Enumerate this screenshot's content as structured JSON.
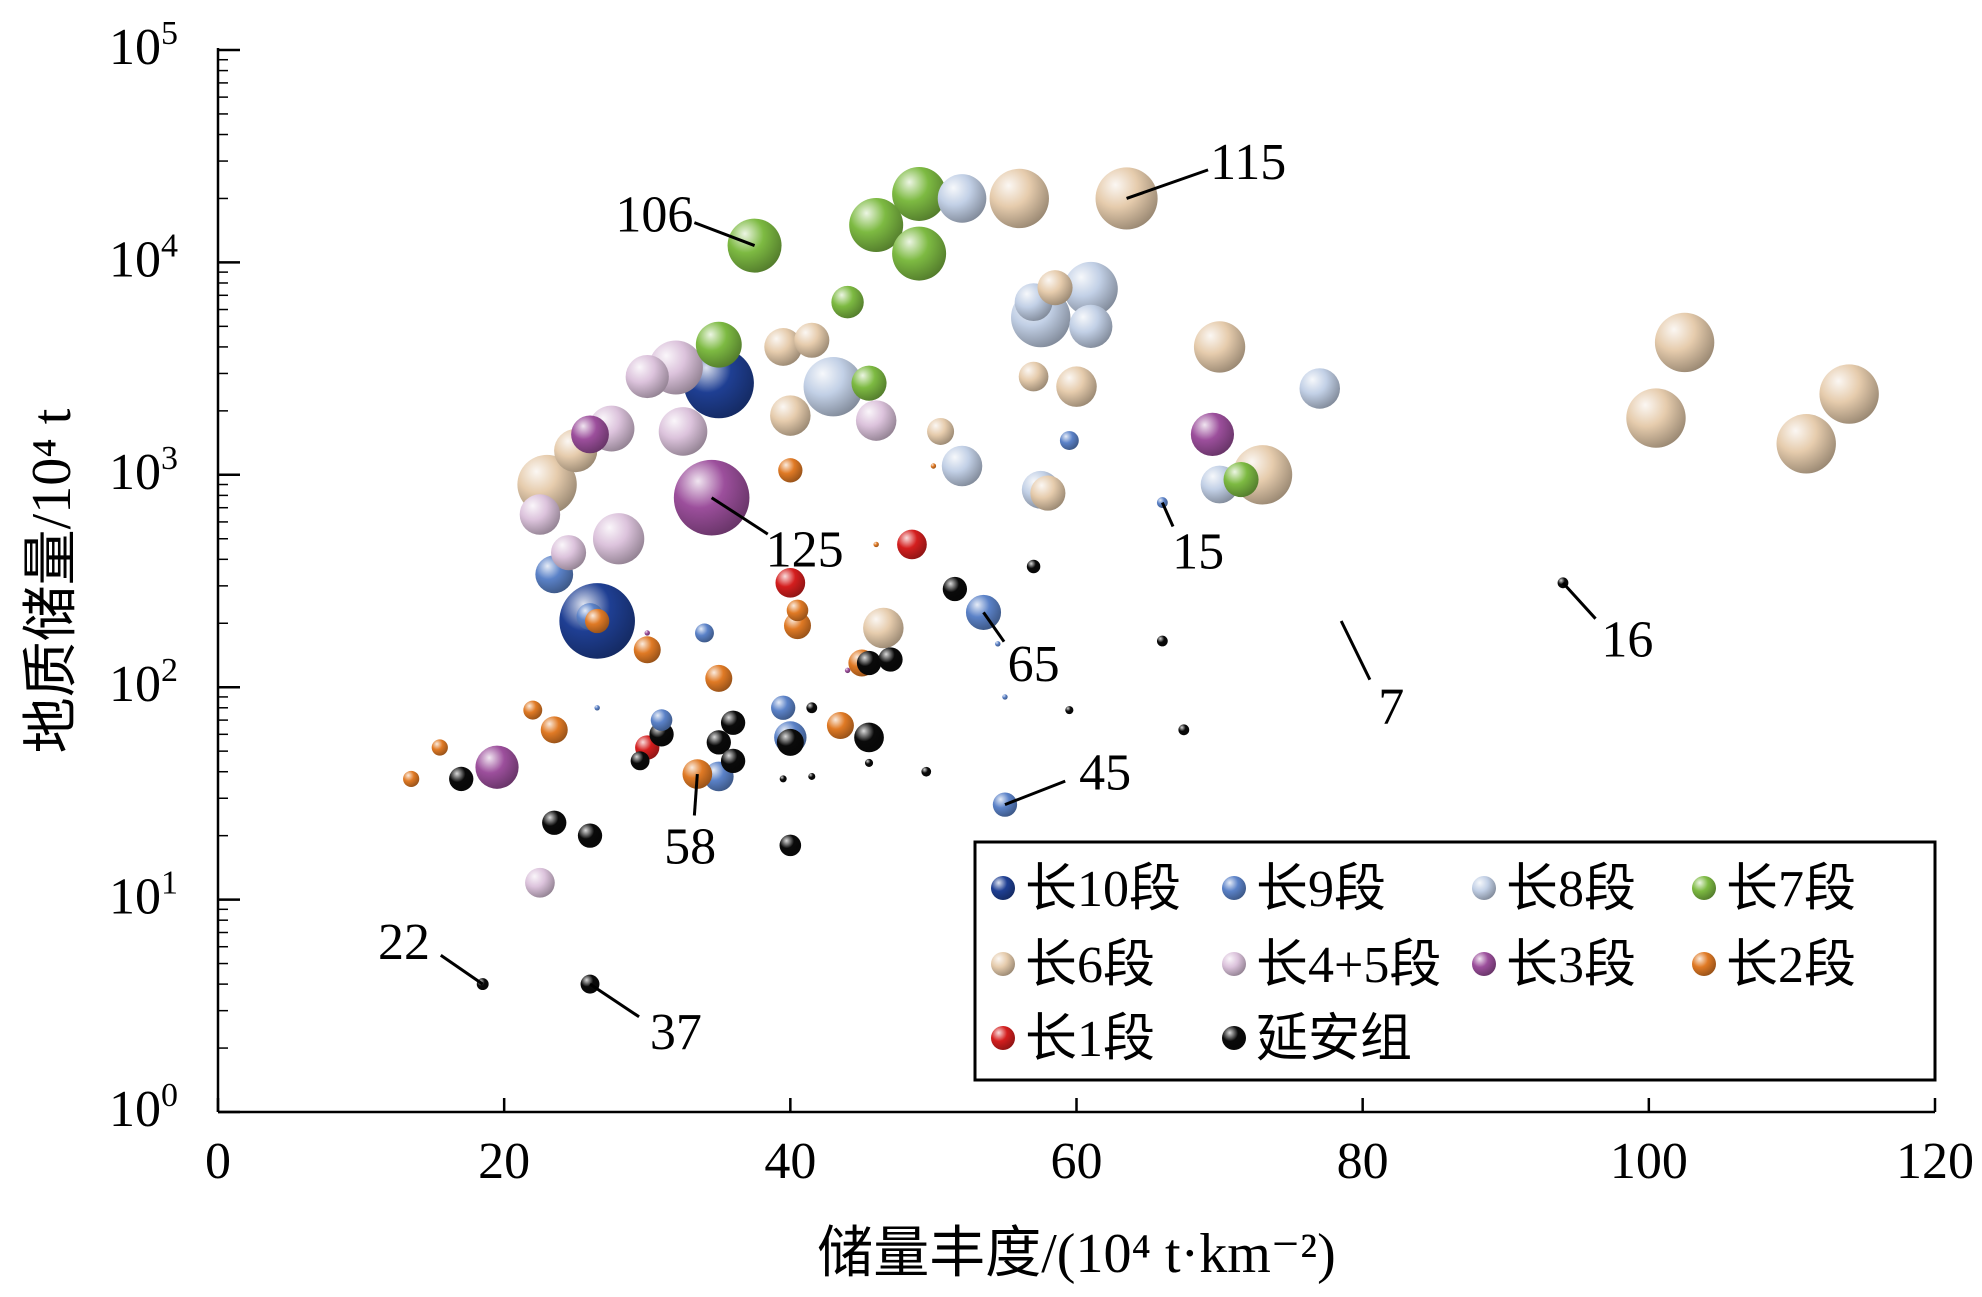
{
  "chart_data": {
    "type": "scatter",
    "title": "",
    "xlabel": "储量丰度/(10⁴ t·km⁻²)",
    "ylabel": "地质储量/10⁴ t",
    "xlim": [
      0,
      120
    ],
    "ylim": [
      1,
      100000
    ],
    "y_scale": "log",
    "grid": false,
    "legend_position": "bottom-right",
    "x_ticks": [
      0,
      20,
      40,
      60,
      80,
      100,
      120
    ],
    "x_tick_labels": [
      "0",
      "20",
      "40",
      "60",
      "80",
      "100",
      "120"
    ],
    "y_ticks": [
      {
        "value": 1,
        "exp": "0"
      },
      {
        "value": 10,
        "exp": "1"
      },
      {
        "value": 100,
        "exp": "2"
      },
      {
        "value": 1000,
        "exp": "3"
      },
      {
        "value": 10000,
        "exp": "4"
      },
      {
        "value": 100000,
        "exp": "5"
      }
    ],
    "y_tick_base": "10",
    "series": [
      {
        "name": "长10段",
        "color": "#1f3f93",
        "points": [
          [
            35,
            2700,
            1.3
          ],
          [
            26.5,
            205,
            1.4
          ]
        ]
      },
      {
        "name": "长9段",
        "color": "#5b82c8",
        "points": [
          [
            23.5,
            340,
            0.7
          ],
          [
            26,
            215,
            0.5
          ],
          [
            34,
            180,
            0.35
          ],
          [
            31,
            70,
            0.4
          ],
          [
            39.5,
            80,
            0.45
          ],
          [
            35,
            38,
            0.55
          ],
          [
            40,
            58,
            0.6
          ],
          [
            53.5,
            225,
            0.65
          ],
          [
            55,
            28,
            0.45
          ],
          [
            59.5,
            1450,
            0.35
          ],
          [
            54.5,
            160,
            0.1
          ],
          [
            55,
            90,
            0.1
          ],
          [
            66,
            740,
            0.2
          ],
          [
            26.5,
            80,
            0.1
          ]
        ]
      },
      {
        "name": "长8段",
        "color": "#c2d0e6",
        "points": [
          [
            52,
            20000,
            0.9
          ],
          [
            57,
            6500,
            0.7
          ],
          [
            57.5,
            5500,
            1.1
          ],
          [
            61,
            7500,
            1.0
          ],
          [
            61,
            5000,
            0.8
          ],
          [
            43,
            2600,
            1.1
          ],
          [
            52,
            1100,
            0.75
          ],
          [
            57.5,
            850,
            0.7
          ],
          [
            70,
            900,
            0.7
          ],
          [
            77,
            2550,
            0.75
          ]
        ]
      },
      {
        "name": "长7段",
        "color": "#7dba42",
        "points": [
          [
            49,
            21000,
            1.0
          ],
          [
            46,
            15000,
            1.0
          ],
          [
            49,
            11000,
            1.0
          ],
          [
            37.5,
            12000,
            1.0
          ],
          [
            44,
            6500,
            0.6
          ],
          [
            35,
            4100,
            0.85
          ],
          [
            45.5,
            2700,
            0.65
          ],
          [
            71.5,
            950,
            0.65
          ]
        ]
      },
      {
        "name": "长6段",
        "color": "#e6ccad",
        "points": [
          [
            56,
            20000,
            1.1
          ],
          [
            63.5,
            20000,
            1.15
          ],
          [
            58.5,
            7600,
            0.65
          ],
          [
            39.5,
            4000,
            0.7
          ],
          [
            41.5,
            4300,
            0.65
          ],
          [
            70,
            4000,
            0.95
          ],
          [
            57,
            2900,
            0.55
          ],
          [
            60,
            2600,
            0.75
          ],
          [
            40,
            1900,
            0.75
          ],
          [
            50.5,
            1600,
            0.5
          ],
          [
            73,
            1000,
            1.1
          ],
          [
            23,
            900,
            1.1
          ],
          [
            25,
            1300,
            0.8
          ],
          [
            58,
            820,
            0.65
          ],
          [
            46.5,
            190,
            0.75
          ],
          [
            102.5,
            4200,
            1.1
          ],
          [
            100.5,
            1850,
            1.1
          ],
          [
            111,
            1400,
            1.1
          ],
          [
            114,
            2400,
            1.1
          ]
        ]
      },
      {
        "name": "长4+5段",
        "color": "#dcc3dc",
        "points": [
          [
            30,
            2900,
            0.8
          ],
          [
            32,
            3200,
            1.0
          ],
          [
            27.5,
            1650,
            0.85
          ],
          [
            32.5,
            1600,
            0.9
          ],
          [
            22.5,
            650,
            0.75
          ],
          [
            24.5,
            430,
            0.65
          ],
          [
            28,
            500,
            0.95
          ],
          [
            46,
            1800,
            0.75
          ],
          [
            22.5,
            12,
            0.55
          ]
        ]
      },
      {
        "name": "长3段",
        "color": "#9c4f9c",
        "points": [
          [
            26,
            1550,
            0.7
          ],
          [
            34.5,
            780,
            1.4
          ],
          [
            69.5,
            1550,
            0.8
          ],
          [
            19.5,
            42,
            0.8
          ],
          [
            30,
            180,
            0.1
          ],
          [
            44,
            120,
            0.1
          ]
        ]
      },
      {
        "name": "长2段",
        "color": "#e07a25",
        "points": [
          [
            40,
            1050,
            0.45
          ],
          [
            26.5,
            205,
            0.45
          ],
          [
            30,
            150,
            0.5
          ],
          [
            35,
            110,
            0.5
          ],
          [
            40.5,
            230,
            0.4
          ],
          [
            40.5,
            195,
            0.5
          ],
          [
            45,
            130,
            0.5
          ],
          [
            43.5,
            66,
            0.5
          ],
          [
            22,
            78,
            0.35
          ],
          [
            23.5,
            63,
            0.5
          ],
          [
            15.5,
            52,
            0.3
          ],
          [
            13.5,
            37,
            0.3
          ],
          [
            33.5,
            39,
            0.55
          ],
          [
            46,
            470,
            0.1
          ],
          [
            50,
            1100,
            0.1
          ]
        ]
      },
      {
        "name": "长1段",
        "color": "#d41e1e",
        "points": [
          [
            48.5,
            470,
            0.55
          ],
          [
            40,
            310,
            0.55
          ],
          [
            30,
            52,
            0.45
          ]
        ]
      },
      {
        "name": "延安组",
        "color": "#0a0a0a",
        "points": [
          [
            51.5,
            290,
            0.45
          ],
          [
            57,
            370,
            0.25
          ],
          [
            45.5,
            130,
            0.45
          ],
          [
            47,
            135,
            0.45
          ],
          [
            35,
            55,
            0.45
          ],
          [
            36,
            68,
            0.45
          ],
          [
            36,
            45,
            0.45
          ],
          [
            31,
            60,
            0.45
          ],
          [
            29.5,
            45,
            0.35
          ],
          [
            40,
            55,
            0.5
          ],
          [
            41.5,
            80,
            0.2
          ],
          [
            45.5,
            58,
            0.55
          ],
          [
            17,
            37,
            0.45
          ],
          [
            23.5,
            23,
            0.45
          ],
          [
            26,
            20,
            0.45
          ],
          [
            40,
            18,
            0.4
          ],
          [
            18.5,
            4,
            0.22
          ],
          [
            26,
            4,
            0.35
          ],
          [
            94,
            310,
            0.2
          ],
          [
            66,
            165,
            0.2
          ],
          [
            67.5,
            63,
            0.2
          ],
          [
            59.5,
            78,
            0.15
          ],
          [
            49.5,
            40,
            0.18
          ],
          [
            45.5,
            44,
            0.15
          ],
          [
            41.5,
            38,
            0.13
          ],
          [
            39.5,
            37,
            0.13
          ]
        ]
      }
    ],
    "annotations": [
      {
        "text": "115",
        "x": 63.5,
        "y": 20000,
        "lx": 72,
        "ly": 30000
      },
      {
        "text": "106",
        "x": 37.5,
        "y": 12000,
        "lx": 30.5,
        "ly": 17000
      },
      {
        "text": "125",
        "x": 34.5,
        "y": 780,
        "lx": 41,
        "ly": 450
      },
      {
        "text": "15",
        "x": 66,
        "y": 740,
        "lx": 68.5,
        "ly": 440
      },
      {
        "text": "16",
        "x": 94,
        "y": 310,
        "lx": 98.5,
        "ly": 170
      },
      {
        "text": "65",
        "x": 53.5,
        "y": 225,
        "lx": 57,
        "ly": 130
      },
      {
        "text": "7",
        "x": 78.5,
        "y": 205,
        "lx": 82,
        "ly": 82
      },
      {
        "text": "45",
        "x": 55,
        "y": 28,
        "lx": 62,
        "ly": 40
      },
      {
        "text": "58",
        "x": 33.5,
        "y": 39,
        "lx": 33,
        "ly": 18
      },
      {
        "text": "22",
        "x": 18.5,
        "y": 4,
        "lx": 13,
        "ly": 6.4
      },
      {
        "text": "37",
        "x": 26,
        "y": 4,
        "lx": 32,
        "ly": 2.4
      }
    ],
    "legend": {
      "columns": 4,
      "entries": [
        "长10段",
        "长9段",
        "长8段",
        "长7段",
        "长6段",
        "长4+5段",
        "长3段",
        "长2段",
        "长1段",
        "延安组"
      ]
    }
  }
}
